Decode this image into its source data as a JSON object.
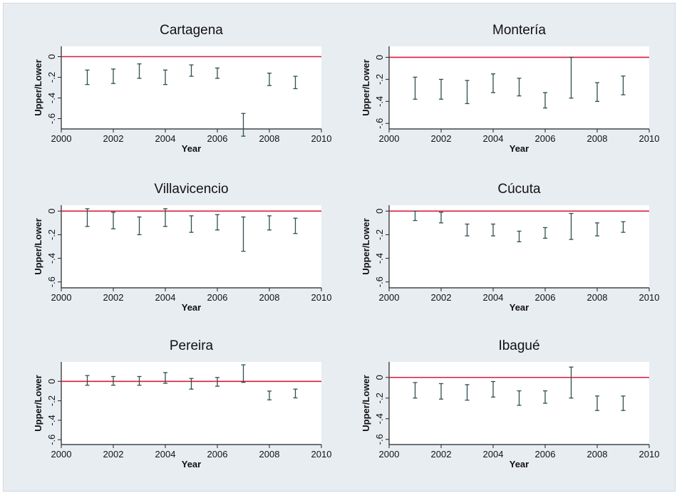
{
  "figure": {
    "background": "#e8edf2",
    "plot_background": "#ffffff",
    "reference_line_color": "#d81e3a",
    "bar_color": "#2f4f4f"
  },
  "chart_data": [
    {
      "type": "errorbar",
      "title": "Cartagena",
      "xlabel": "Year",
      "ylabel": "Upper/Lower",
      "xlim": [
        2000,
        2010
      ],
      "ylim": [
        -0.7,
        0.1
      ],
      "xticks": [
        "2000",
        "2002",
        "2004",
        "2006",
        "2008",
        "2010"
      ],
      "yticks": [
        "0",
        "-.2",
        "-.4",
        "-.6"
      ],
      "reference_line": 0,
      "series": [
        {
          "x": 2001,
          "low": -0.27,
          "high": -0.13
        },
        {
          "x": 2002,
          "low": -0.26,
          "high": -0.12
        },
        {
          "x": 2003,
          "low": -0.21,
          "high": -0.07
        },
        {
          "x": 2004,
          "low": -0.27,
          "high": -0.13
        },
        {
          "x": 2005,
          "low": -0.19,
          "high": -0.08
        },
        {
          "x": 2006,
          "low": -0.21,
          "high": -0.11
        },
        {
          "x": 2007,
          "low": -0.77,
          "high": -0.55
        },
        {
          "x": 2008,
          "low": -0.28,
          "high": -0.16
        },
        {
          "x": 2009,
          "low": -0.31,
          "high": -0.19
        }
      ]
    },
    {
      "type": "errorbar",
      "title": "Montería",
      "xlabel": "Year",
      "ylabel": "Upper/Lower",
      "xlim": [
        2000,
        2010
      ],
      "ylim": [
        -0.65,
        0.1
      ],
      "xticks": [
        "2000",
        "2002",
        "2004",
        "2006",
        "2008",
        "2010"
      ],
      "yticks": [
        "0",
        "-.2",
        "-.4",
        "-.6"
      ],
      "reference_line": 0,
      "series": [
        {
          "x": 2001,
          "low": -0.38,
          "high": -0.18
        },
        {
          "x": 2002,
          "low": -0.38,
          "high": -0.2
        },
        {
          "x": 2003,
          "low": -0.42,
          "high": -0.21
        },
        {
          "x": 2004,
          "low": -0.32,
          "high": -0.15
        },
        {
          "x": 2005,
          "low": -0.35,
          "high": -0.19
        },
        {
          "x": 2006,
          "low": -0.46,
          "high": -0.32
        },
        {
          "x": 2007,
          "low": -0.37,
          "high": 0.0
        },
        {
          "x": 2008,
          "low": -0.4,
          "high": -0.23
        },
        {
          "x": 2009,
          "low": -0.34,
          "high": -0.17
        }
      ]
    },
    {
      "type": "errorbar",
      "title": "Villavicencio",
      "xlabel": "Year",
      "ylabel": "Upper/Lower",
      "xlim": [
        2000,
        2010
      ],
      "ylim": [
        -0.65,
        0.05
      ],
      "xticks": [
        "2000",
        "2002",
        "2004",
        "2006",
        "2008",
        "2010"
      ],
      "yticks": [
        "0",
        "-.2",
        "-.4",
        "-.6"
      ],
      "reference_line": 0,
      "series": [
        {
          "x": 2001,
          "low": -0.13,
          "high": 0.02
        },
        {
          "x": 2002,
          "low": -0.15,
          "high": -0.01
        },
        {
          "x": 2003,
          "low": -0.2,
          "high": -0.05
        },
        {
          "x": 2004,
          "low": -0.13,
          "high": 0.02
        },
        {
          "x": 2005,
          "low": -0.18,
          "high": -0.04
        },
        {
          "x": 2006,
          "low": -0.16,
          "high": -0.03
        },
        {
          "x": 2007,
          "low": -0.34,
          "high": -0.05
        },
        {
          "x": 2008,
          "low": -0.16,
          "high": -0.04
        },
        {
          "x": 2009,
          "low": -0.19,
          "high": -0.06
        }
      ]
    },
    {
      "type": "errorbar",
      "title": "Cúcuta",
      "xlabel": "Year",
      "ylabel": "Upper/Lower",
      "xlim": [
        2000,
        2010
      ],
      "ylim": [
        -0.65,
        0.05
      ],
      "xticks": [
        "2000",
        "2002",
        "2004",
        "2006",
        "2008",
        "2010"
      ],
      "yticks": [
        "0",
        "-.2",
        "-.4",
        "-.6"
      ],
      "reference_line": 0,
      "series": [
        {
          "x": 2001,
          "low": -0.08,
          "high": 0.0
        },
        {
          "x": 2002,
          "low": -0.1,
          "high": -0.01
        },
        {
          "x": 2003,
          "low": -0.21,
          "high": -0.11
        },
        {
          "x": 2004,
          "low": -0.21,
          "high": -0.11
        },
        {
          "x": 2005,
          "low": -0.26,
          "high": -0.17
        },
        {
          "x": 2006,
          "low": -0.23,
          "high": -0.14
        },
        {
          "x": 2007,
          "low": -0.24,
          "high": -0.02
        },
        {
          "x": 2008,
          "low": -0.21,
          "high": -0.1
        },
        {
          "x": 2009,
          "low": -0.18,
          "high": -0.09
        }
      ]
    },
    {
      "type": "errorbar",
      "title": "Pereira",
      "xlabel": "Year",
      "ylabel": "Upper/Lower",
      "xlim": [
        2000,
        2010
      ],
      "ylim": [
        -0.65,
        0.2
      ],
      "xticks": [
        "2000",
        "2002",
        "2004",
        "2006",
        "2008",
        "2010"
      ],
      "yticks": [
        "0",
        "-.2",
        "-.4",
        "-.6"
      ],
      "reference_line": 0,
      "series": [
        {
          "x": 2001,
          "low": -0.04,
          "high": 0.06
        },
        {
          "x": 2002,
          "low": -0.04,
          "high": 0.05
        },
        {
          "x": 2003,
          "low": -0.04,
          "high": 0.05
        },
        {
          "x": 2004,
          "low": -0.02,
          "high": 0.09
        },
        {
          "x": 2005,
          "low": -0.08,
          "high": 0.03
        },
        {
          "x": 2006,
          "low": -0.05,
          "high": 0.04
        },
        {
          "x": 2007,
          "low": -0.01,
          "high": 0.17
        },
        {
          "x": 2008,
          "low": -0.19,
          "high": -0.1
        },
        {
          "x": 2009,
          "low": -0.17,
          "high": -0.08
        }
      ]
    },
    {
      "type": "errorbar",
      "title": "Ibagué",
      "xlabel": "Year",
      "ylabel": "Upper/Lower",
      "xlim": [
        2000,
        2010
      ],
      "ylim": [
        -0.65,
        0.15
      ],
      "xticks": [
        "2000",
        "2002",
        "2004",
        "2006",
        "2008",
        "2010"
      ],
      "yticks": [
        "0",
        "-.2",
        "-.4",
        "-.6"
      ],
      "reference_line": 0,
      "series": [
        {
          "x": 2001,
          "low": -0.2,
          "high": -0.05
        },
        {
          "x": 2002,
          "low": -0.21,
          "high": -0.06
        },
        {
          "x": 2003,
          "low": -0.22,
          "high": -0.07
        },
        {
          "x": 2004,
          "low": -0.19,
          "high": -0.04
        },
        {
          "x": 2005,
          "low": -0.27,
          "high": -0.13
        },
        {
          "x": 2006,
          "low": -0.25,
          "high": -0.13
        },
        {
          "x": 2007,
          "low": -0.2,
          "high": 0.1
        },
        {
          "x": 2008,
          "low": -0.32,
          "high": -0.18
        },
        {
          "x": 2009,
          "low": -0.32,
          "high": -0.18
        }
      ]
    }
  ]
}
